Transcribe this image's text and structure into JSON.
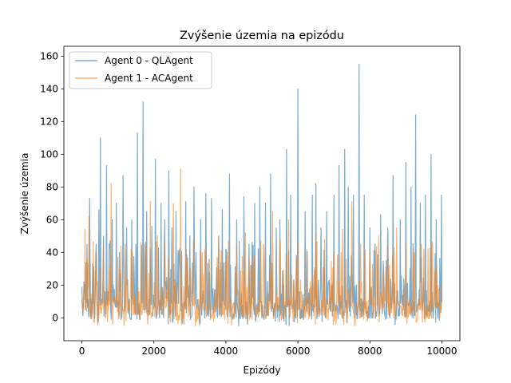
{
  "chart_data": {
    "type": "line",
    "title": "Zvýšenie územia na epizódu",
    "xlabel": "Epizódy",
    "ylabel": "Zvýšenie územia",
    "xlim": [
      -500,
      10500
    ],
    "ylim": [
      -14,
      166
    ],
    "xticks": [
      0,
      2000,
      4000,
      6000,
      8000,
      10000
    ],
    "yticks": [
      0,
      20,
      40,
      60,
      80,
      100,
      120,
      140,
      160
    ],
    "grid": false,
    "legend_position": "top-left",
    "x_domain": [
      0,
      10000
    ],
    "series": [
      {
        "name": "Agent 0 - QLAgent",
        "color": "#1f77b4",
        "opacity": 0.6,
        "typical_range": [
          -1,
          22
        ],
        "peaks": [
          {
            "x": 0,
            "y": 19
          },
          {
            "x": 60,
            "y": 22
          },
          {
            "x": 150,
            "y": 45
          },
          {
            "x": 220,
            "y": 73
          },
          {
            "x": 300,
            "y": 33
          },
          {
            "x": 400,
            "y": 45
          },
          {
            "x": 470,
            "y": 66
          },
          {
            "x": 520,
            "y": 110
          },
          {
            "x": 600,
            "y": 50
          },
          {
            "x": 680,
            "y": 93
          },
          {
            "x": 760,
            "y": 45
          },
          {
            "x": 850,
            "y": 60
          },
          {
            "x": 960,
            "y": 70
          },
          {
            "x": 1050,
            "y": 40
          },
          {
            "x": 1150,
            "y": 87
          },
          {
            "x": 1250,
            "y": 55
          },
          {
            "x": 1380,
            "y": 60
          },
          {
            "x": 1500,
            "y": 45
          },
          {
            "x": 1550,
            "y": 113
          },
          {
            "x": 1700,
            "y": 132
          },
          {
            "x": 1800,
            "y": 65
          },
          {
            "x": 1950,
            "y": 56
          },
          {
            "x": 2050,
            "y": 97
          },
          {
            "x": 2200,
            "y": 70
          },
          {
            "x": 2300,
            "y": 60
          },
          {
            "x": 2420,
            "y": 90
          },
          {
            "x": 2500,
            "y": 55
          },
          {
            "x": 2620,
            "y": 65
          },
          {
            "x": 2700,
            "y": 40
          },
          {
            "x": 2880,
            "y": 71
          },
          {
            "x": 3000,
            "y": 50
          },
          {
            "x": 3120,
            "y": 80
          },
          {
            "x": 3300,
            "y": 60
          },
          {
            "x": 3450,
            "y": 76
          },
          {
            "x": 3600,
            "y": 73
          },
          {
            "x": 3800,
            "y": 50
          },
          {
            "x": 3900,
            "y": 66
          },
          {
            "x": 4000,
            "y": 42
          },
          {
            "x": 4100,
            "y": 88
          },
          {
            "x": 4300,
            "y": 60
          },
          {
            "x": 4500,
            "y": 74
          },
          {
            "x": 4650,
            "y": 45
          },
          {
            "x": 4800,
            "y": 70
          },
          {
            "x": 4950,
            "y": 80
          },
          {
            "x": 5100,
            "y": 70
          },
          {
            "x": 5250,
            "y": 88
          },
          {
            "x": 5400,
            "y": 55
          },
          {
            "x": 5500,
            "y": 60
          },
          {
            "x": 5680,
            "y": 103
          },
          {
            "x": 5800,
            "y": 75
          },
          {
            "x": 6000,
            "y": 140
          },
          {
            "x": 6200,
            "y": 65
          },
          {
            "x": 6400,
            "y": 75
          },
          {
            "x": 6500,
            "y": 82
          },
          {
            "x": 6650,
            "y": 55
          },
          {
            "x": 6800,
            "y": 65
          },
          {
            "x": 7000,
            "y": 75
          },
          {
            "x": 7150,
            "y": 93
          },
          {
            "x": 7300,
            "y": 103
          },
          {
            "x": 7400,
            "y": 80
          },
          {
            "x": 7550,
            "y": 75
          },
          {
            "x": 7700,
            "y": 155
          },
          {
            "x": 7850,
            "y": 75
          },
          {
            "x": 8000,
            "y": 55
          },
          {
            "x": 8150,
            "y": 45
          },
          {
            "x": 8300,
            "y": 63
          },
          {
            "x": 8500,
            "y": 55
          },
          {
            "x": 8650,
            "y": 87
          },
          {
            "x": 8850,
            "y": 60
          },
          {
            "x": 9000,
            "y": 95
          },
          {
            "x": 9150,
            "y": 80
          },
          {
            "x": 9270,
            "y": 124
          },
          {
            "x": 9400,
            "y": 70
          },
          {
            "x": 9550,
            "y": 75
          },
          {
            "x": 9700,
            "y": 100
          },
          {
            "x": 9850,
            "y": 60
          },
          {
            "x": 9980,
            "y": 75
          }
        ]
      },
      {
        "name": "Agent 1 - ACAgent",
        "color": "#ff7f0e",
        "opacity": 0.6,
        "typical_range": [
          -1,
          22
        ],
        "peaks": [
          {
            "x": 0,
            "y": 12
          },
          {
            "x": 80,
            "y": 54
          },
          {
            "x": 200,
            "y": 62
          },
          {
            "x": 400,
            "y": 40
          },
          {
            "x": 600,
            "y": 45
          },
          {
            "x": 820,
            "y": 82
          },
          {
            "x": 1000,
            "y": 37
          },
          {
            "x": 1200,
            "y": 45
          },
          {
            "x": 1400,
            "y": 40
          },
          {
            "x": 1650,
            "y": 46
          },
          {
            "x": 1900,
            "y": 71
          },
          {
            "x": 2100,
            "y": 50
          },
          {
            "x": 2300,
            "y": 46
          },
          {
            "x": 2550,
            "y": 70
          },
          {
            "x": 2750,
            "y": 91
          },
          {
            "x": 2900,
            "y": 42
          },
          {
            "x": 3100,
            "y": 48
          },
          {
            "x": 3350,
            "y": 40
          },
          {
            "x": 3550,
            "y": 36
          },
          {
            "x": 3800,
            "y": 50
          },
          {
            "x": 4050,
            "y": 40
          },
          {
            "x": 4300,
            "y": 45
          },
          {
            "x": 4550,
            "y": 52
          },
          {
            "x": 4800,
            "y": 38
          },
          {
            "x": 5050,
            "y": 45
          },
          {
            "x": 5300,
            "y": 65
          },
          {
            "x": 5500,
            "y": 48
          },
          {
            "x": 5750,
            "y": 60
          },
          {
            "x": 6000,
            "y": 46
          },
          {
            "x": 6250,
            "y": 42
          },
          {
            "x": 6500,
            "y": 52
          },
          {
            "x": 6750,
            "y": 48
          },
          {
            "x": 7000,
            "y": 40
          },
          {
            "x": 7250,
            "y": 54
          },
          {
            "x": 7500,
            "y": 71
          },
          {
            "x": 7750,
            "y": 45
          },
          {
            "x": 8000,
            "y": 42
          },
          {
            "x": 8250,
            "y": 50
          },
          {
            "x": 8500,
            "y": 44
          },
          {
            "x": 8750,
            "y": 55
          },
          {
            "x": 9000,
            "y": 46
          },
          {
            "x": 9250,
            "y": 40
          },
          {
            "x": 9500,
            "y": 42
          },
          {
            "x": 9750,
            "y": 45
          },
          {
            "x": 10000,
            "y": 22
          }
        ]
      }
    ]
  }
}
